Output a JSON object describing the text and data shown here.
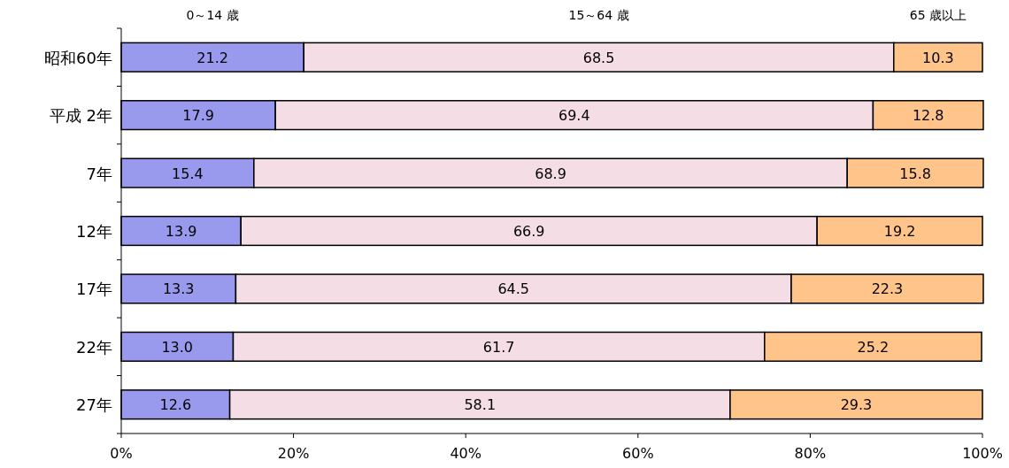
{
  "chart_data": {
    "type": "bar",
    "orientation": "horizontal",
    "stacked": true,
    "categories": [
      "昭和60年",
      "平成 2年",
      "7年",
      "12年",
      "17年",
      "22年",
      "27年"
    ],
    "series": [
      {
        "name": "0～14 歳",
        "color": "#9999ee",
        "values": [
          21.2,
          17.9,
          15.4,
          13.9,
          13.3,
          13.0,
          12.6
        ],
        "value_labels": [
          "21.2",
          "17.9",
          "15.4",
          "13.9",
          "13.3",
          "13.0",
          "12.6"
        ]
      },
      {
        "name": "15～64 歳",
        "color": "#f4dde4",
        "values": [
          68.5,
          69.4,
          68.9,
          66.9,
          64.5,
          61.7,
          58.1
        ],
        "value_labels": [
          "68.5",
          "69.4",
          "68.9",
          "66.9",
          "64.5",
          "61.7",
          "58.1"
        ]
      },
      {
        "name": "65 歳以上",
        "color": "#ffc48a",
        "values": [
          10.3,
          12.8,
          15.8,
          19.2,
          22.3,
          25.2,
          29.3
        ],
        "value_labels": [
          "10.3",
          "12.8",
          "15.8",
          "19.2",
          "22.3",
          "25.2",
          "29.3"
        ]
      }
    ],
    "xlim": [
      0,
      100
    ],
    "xticks": [
      {
        "value": 0,
        "label": "0%"
      },
      {
        "value": 20,
        "label": "20%"
      },
      {
        "value": 40,
        "label": "40%"
      },
      {
        "value": 60,
        "label": "60%"
      },
      {
        "value": 80,
        "label": "80%"
      },
      {
        "value": 100,
        "label": "100%"
      }
    ]
  }
}
